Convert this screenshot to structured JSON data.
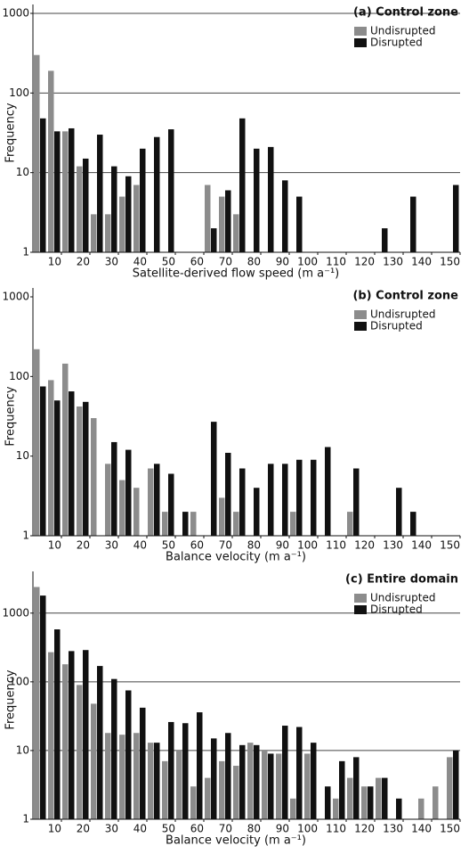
{
  "chart_data": [
    {
      "type": "histogram",
      "title": "(a) Control zone",
      "x_label": "Satellite-derived flow speed (m a⁻¹)",
      "y_label": "Frequency",
      "bins": [
        0,
        5,
        10,
        15,
        20,
        25,
        30,
        35,
        40,
        45,
        50,
        55,
        60,
        65,
        70,
        75,
        80,
        85,
        90,
        95,
        100,
        105,
        110,
        115,
        120,
        125,
        130,
        135,
        140,
        145,
        150
      ],
      "series": [
        {
          "name": "Undisrupted",
          "color": "#8c8c8c",
          "values": [
            300,
            190,
            33,
            12,
            3,
            3,
            5,
            7,
            null,
            null,
            null,
            null,
            7,
            5,
            3,
            null,
            null,
            null,
            null,
            null,
            null,
            null,
            null,
            null,
            null,
            null,
            null,
            null,
            null,
            null
          ]
        },
        {
          "name": "Disrupted",
          "color": "#111111",
          "values": [
            48,
            33,
            36,
            15,
            30,
            12,
            9,
            20,
            28,
            35,
            null,
            null,
            2,
            6,
            48,
            20,
            21,
            8,
            5,
            null,
            null,
            null,
            null,
            null,
            2,
            null,
            5,
            null,
            null,
            7
          ]
        }
      ],
      "xlim": [
        0,
        150
      ],
      "xticks": [
        10,
        20,
        30,
        40,
        50,
        60,
        70,
        80,
        90,
        100,
        110,
        120,
        130,
        140,
        150
      ],
      "ylim": [
        1,
        1000
      ],
      "yticks": [
        1,
        10,
        100,
        1000
      ],
      "log_y": true,
      "grid": true,
      "legend": "upper right"
    },
    {
      "type": "histogram",
      "title": "(b) Control zone",
      "x_label": "Balance velocity (m a⁻¹)",
      "y_label": "Frequency",
      "bins": [
        0,
        5,
        10,
        15,
        20,
        25,
        30,
        35,
        40,
        45,
        50,
        55,
        60,
        65,
        70,
        75,
        80,
        85,
        90,
        95,
        100,
        105,
        110,
        115,
        120,
        125,
        130,
        135,
        140,
        145,
        150
      ],
      "series": [
        {
          "name": "Undisrupted",
          "color": "#8c8c8c",
          "values": [
            220,
            90,
            145,
            42,
            30,
            8,
            5,
            4,
            7,
            2,
            null,
            2,
            null,
            3,
            2,
            null,
            null,
            null,
            2,
            null,
            null,
            null,
            2,
            null,
            null,
            null,
            null,
            null,
            null,
            null
          ]
        },
        {
          "name": "Disrupted",
          "color": "#111111",
          "values": [
            75,
            50,
            65,
            48,
            null,
            15,
            12,
            null,
            8,
            6,
            2,
            null,
            27,
            11,
            7,
            4,
            8,
            8,
            9,
            9,
            13,
            null,
            7,
            null,
            null,
            4,
            2,
            null,
            null,
            null
          ]
        }
      ],
      "xlim": [
        0,
        150
      ],
      "xticks": [
        10,
        20,
        30,
        40,
        50,
        60,
        70,
        80,
        90,
        100,
        110,
        120,
        130,
        140,
        150
      ],
      "ylim": [
        1,
        1000
      ],
      "yticks": [
        1,
        10,
        100,
        1000
      ],
      "log_y": true,
      "grid": false,
      "legend": "upper right"
    },
    {
      "type": "histogram",
      "title": "(c) Entire domain",
      "x_label": "Balance velocity (m a⁻¹)",
      "y_label": "Frequency",
      "bins": [
        0,
        5,
        10,
        15,
        20,
        25,
        30,
        35,
        40,
        45,
        50,
        55,
        60,
        65,
        70,
        75,
        80,
        85,
        90,
        95,
        100,
        105,
        110,
        115,
        120,
        125,
        130,
        135,
        140,
        145,
        150
      ],
      "series": [
        {
          "name": "Undisrupted",
          "color": "#8c8c8c",
          "values": [
            2400,
            270,
            180,
            90,
            48,
            18,
            17,
            18,
            13,
            7,
            10,
            3,
            4,
            7,
            6,
            13,
            10,
            9,
            2,
            9,
            null,
            2,
            4,
            3,
            4,
            null,
            null,
            2,
            3,
            8
          ]
        },
        {
          "name": "Disrupted",
          "color": "#111111",
          "values": [
            1800,
            580,
            280,
            290,
            170,
            110,
            75,
            42,
            13,
            26,
            25,
            36,
            15,
            18,
            12,
            12,
            9,
            23,
            22,
            13,
            3,
            7,
            8,
            3,
            4,
            2,
            null,
            null,
            null,
            10
          ]
        }
      ],
      "xlim": [
        0,
        150
      ],
      "xticks": [
        10,
        20,
        30,
        40,
        50,
        60,
        70,
        80,
        90,
        100,
        110,
        120,
        130,
        140,
        150
      ],
      "ylim": [
        1,
        3000
      ],
      "yticks": [
        1,
        10,
        100,
        1000
      ],
      "log_y": true,
      "grid": true,
      "legend": "upper right"
    }
  ]
}
